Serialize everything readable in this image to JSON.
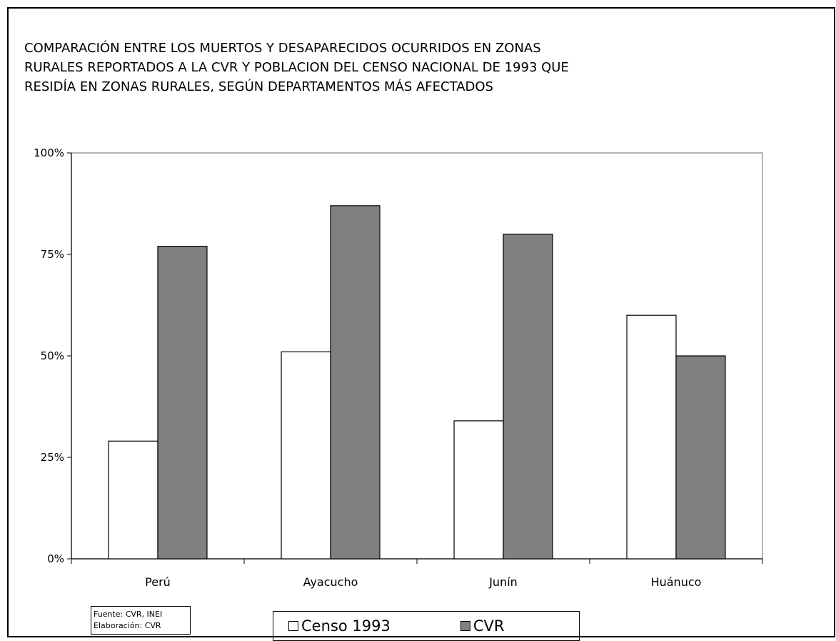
{
  "chart_data": {
    "type": "bar",
    "title_lines": [
      "COMPARACIÓN ENTRE LOS MUERTOS Y DESAPARECIDOS OCURRIDOS EN ZONAS",
      "RURALES REPORTADOS A LA CVR Y POBLACION DEL CENSO NACIONAL DE 1993 QUE",
      "RESIDÍA EN ZONAS RURALES, SEGÚN DEPARTAMENTOS MÁS AFECTADOS"
    ],
    "categories": [
      "Perú",
      "Ayacucho",
      "Junín",
      "Huánuco"
    ],
    "series": [
      {
        "name": "Censo 1993",
        "color": "#ffffff",
        "values": [
          29,
          51,
          34,
          60
        ]
      },
      {
        "name": "CVR",
        "color": "#808080",
        "values": [
          77,
          87,
          80,
          50
        ]
      }
    ],
    "ylim": [
      0,
      100
    ],
    "yticks": [
      {
        "value": 0,
        "label": "0%"
      },
      {
        "value": 25,
        "label": "25%"
      },
      {
        "value": 50,
        "label": "50%"
      },
      {
        "value": 75,
        "label": "75%"
      },
      {
        "value": 100,
        "label": "100%"
      }
    ],
    "xlabel": "",
    "ylabel": "",
    "grid": false,
    "legend_position": "bottom-center"
  },
  "source_note": {
    "line1": "Fuente: CVR, INEI",
    "line2": "Elaboración: CVR"
  },
  "legend": {
    "item1": "Censo 1993",
    "item2": "CVR"
  }
}
